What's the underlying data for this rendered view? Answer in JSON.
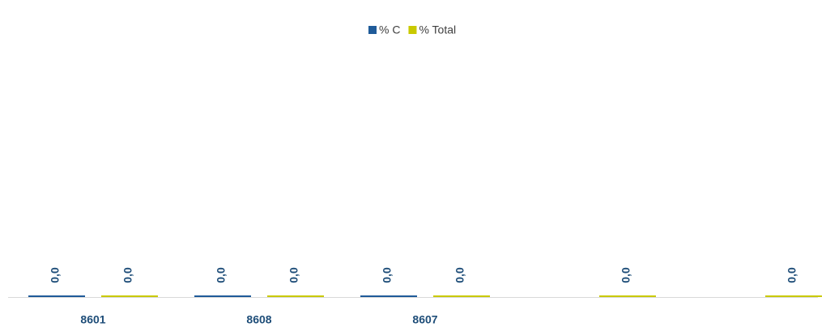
{
  "chart_data": {
    "type": "bar",
    "categories": [
      "8601",
      "8608",
      "8607",
      null,
      null
    ],
    "series": [
      {
        "name": "% C",
        "color": "#1f5b99",
        "values": [
          0,
          0,
          0,
          null,
          null
        ],
        "value_labels": [
          "0,0",
          "0,0",
          "0,0",
          null,
          null
        ]
      },
      {
        "name": "% Total",
        "color": "#c9c900",
        "values": [
          0,
          0,
          0,
          0,
          0
        ],
        "value_labels": [
          "0,0",
          "0,0",
          "0,0",
          "0,0",
          "0,0"
        ]
      }
    ],
    "legend": "top"
  }
}
